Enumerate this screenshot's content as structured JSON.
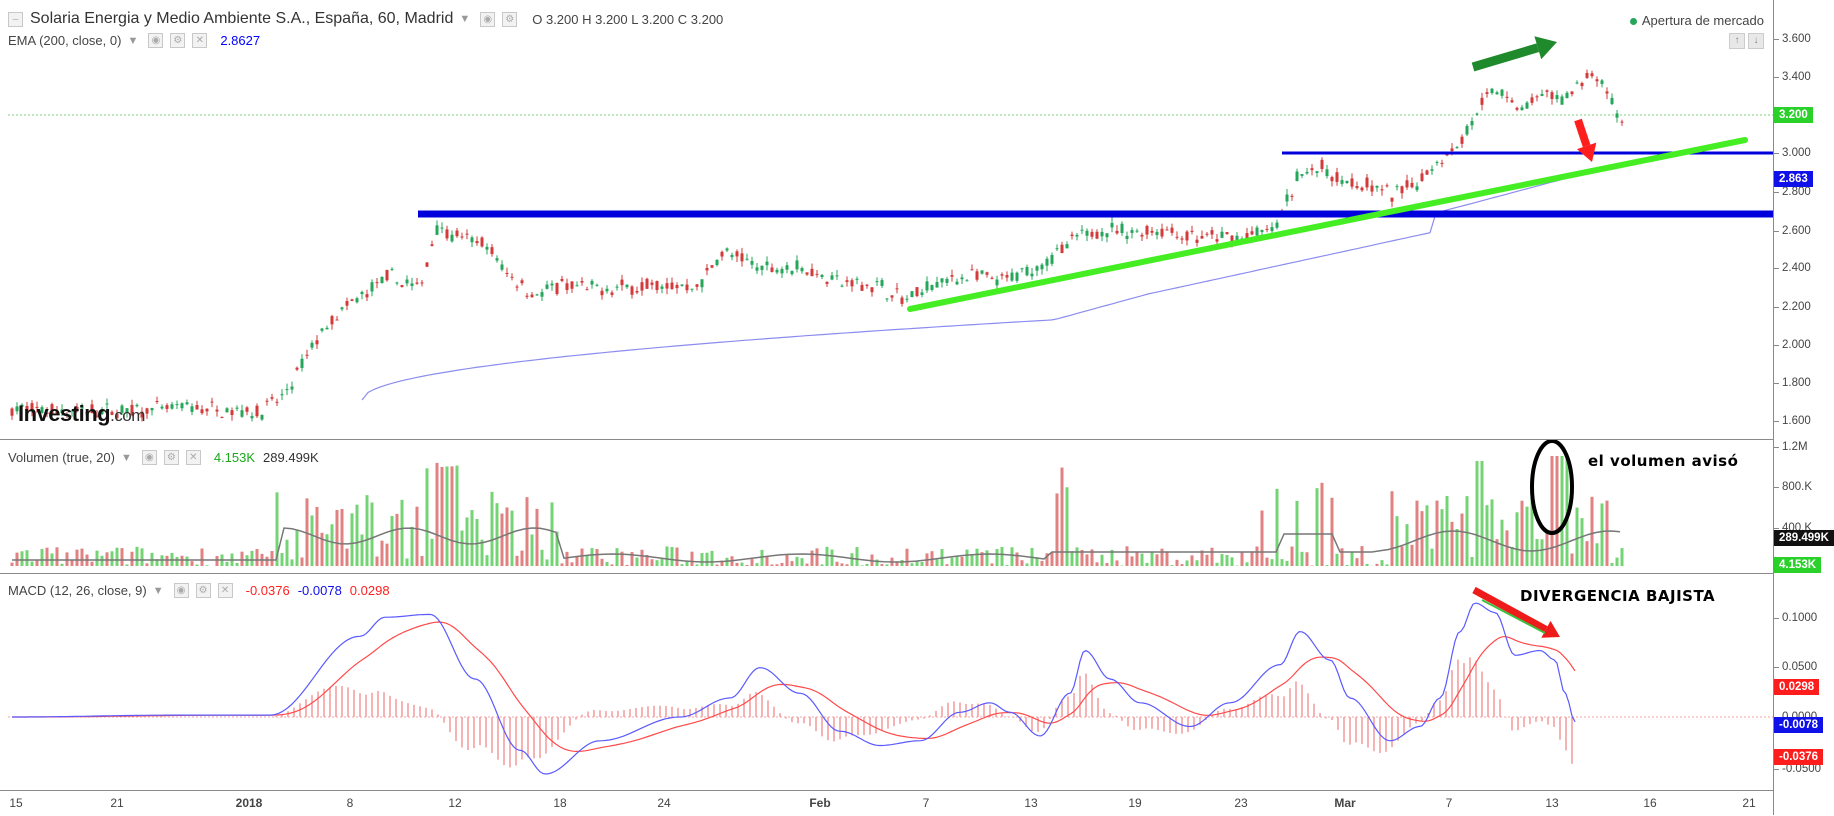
{
  "header": {
    "title": "Solaria Energia y Medio Ambiente S.A., España, 60, Madrid",
    "ohlc": "O 3.200  H 3.200  L 3.200  C 3.200",
    "market_status": "Apertura de mercado"
  },
  "indicators": {
    "ema": {
      "label": "EMA (200, close, 0)",
      "value": "2.8627",
      "color": "#0000ff"
    },
    "volume": {
      "label": "Volumen (true, 20)",
      "value1": "4.153K",
      "value2": "289.499K"
    },
    "macd": {
      "label": "MACD (12, 26, close, 9)",
      "v1": "-0.0376",
      "v2": "-0.0078",
      "v3": "0.0298"
    }
  },
  "price_axis": {
    "ticks": [
      "3.600",
      "3.400",
      "3.200",
      "3.000",
      "2.800",
      "2.600",
      "2.400",
      "2.200",
      "2.000",
      "1.800",
      "1.600"
    ],
    "badges": [
      {
        "text": "3.200",
        "color": "#2bd12b"
      },
      {
        "text": "2.863",
        "color": "#1010e8"
      }
    ]
  },
  "volume_axis": {
    "ticks": [
      "1.2M",
      "800.K",
      "400.K"
    ],
    "badges": [
      {
        "text": "289.499K",
        "color": "#111111"
      },
      {
        "text": "4.153K",
        "color": "#2bd12b"
      }
    ]
  },
  "macd_axis": {
    "ticks": [
      "0.1000",
      "0.0500",
      "0.0000",
      "-0.0500"
    ],
    "badges": [
      {
        "text": "0.0298",
        "color": "#ff1c1c"
      },
      {
        "text": "-0.0078",
        "color": "#1010e8"
      },
      {
        "text": "-0.0376",
        "color": "#ff1c1c"
      }
    ]
  },
  "time_axis": {
    "labels": [
      "15",
      "21",
      "2018",
      "8",
      "12",
      "18",
      "24",
      "Feb",
      "7",
      "13",
      "19",
      "23",
      "Mar",
      "7",
      "13",
      "16",
      "21"
    ]
  },
  "annotations": {
    "volume_note": "el volumen avisó",
    "macd_note": "DIVERGENCIA BAJISTA"
  },
  "logo": {
    "text": "Investing",
    "suffix": ".com"
  },
  "colors": {
    "up_candle": "#26a65b",
    "down_candle": "#d33a3a",
    "resistance": "#0000dd",
    "trendline": "#44ee22",
    "ema_line": "#8c8cf0",
    "macd_line": "#5a5aff",
    "signal_line": "#ff4a4a"
  }
}
